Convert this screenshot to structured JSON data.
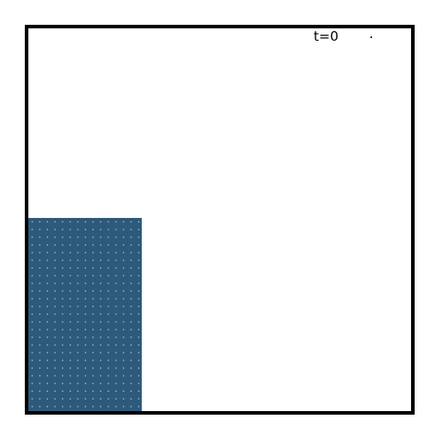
{
  "simulation": {
    "time_label": "t=0"
  },
  "colors": {
    "fluid_block": "#2d5a7b",
    "frame_border": "#000000",
    "background": "#ffffff"
  }
}
